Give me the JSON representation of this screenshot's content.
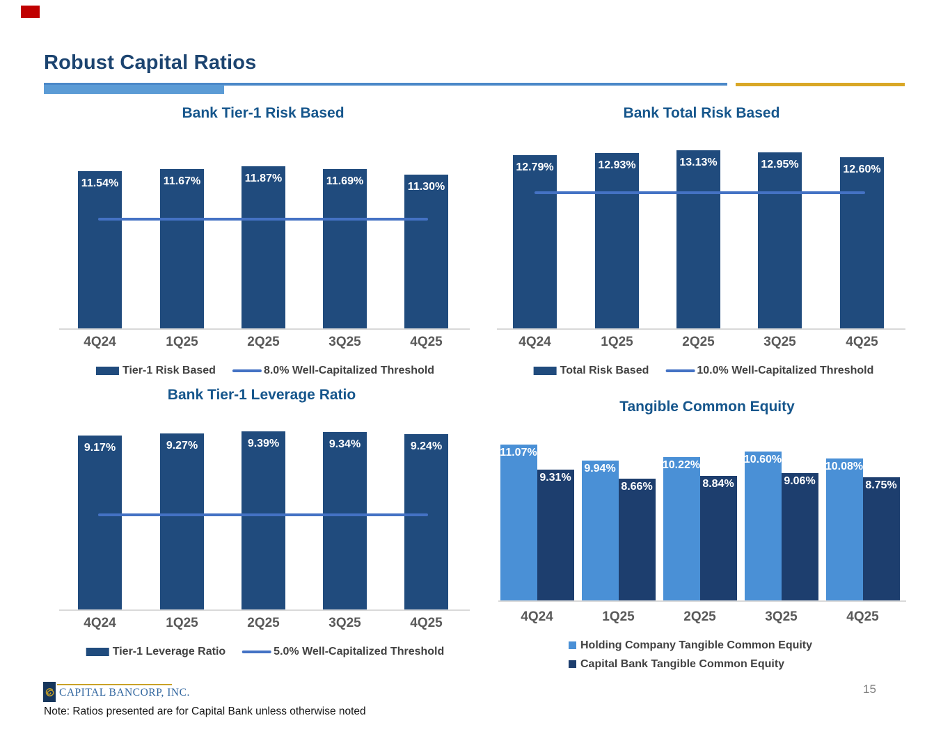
{
  "slide": {
    "title": "Robust Capital Ratios",
    "footnote": "Note: Ratios presented are for Capital Bank unless otherwise noted",
    "page_number": "15",
    "company_name": "CAPITAL BANCORP, INC.",
    "colors": {
      "bar_navy": "#204B7D",
      "bar_light_blue": "#4A90D6",
      "bar_dark_navy": "#1D3E6E",
      "threshold_line_blue": "#4472C4",
      "underline_blue": "#4B88C8",
      "underline_light_blue": "#5B9BD5",
      "underline_gold": "#D9A726",
      "accent_red": "#C00000",
      "main_title_navy": "#1C4470",
      "chart_title_blue": "#16568C",
      "axis_label_gray": "#595959",
      "logo_gold": "#C9A227",
      "logo_navy": "#16365C"
    }
  },
  "chart_data": [
    {
      "id": "bank-tier1-risk-based",
      "type": "bar",
      "title": "Bank Tier-1 Risk Based",
      "categories": [
        "4Q24",
        "1Q25",
        "2Q25",
        "3Q25",
        "4Q25"
      ],
      "series": [
        {
          "name": "Tier-1 Risk Based",
          "values": [
            11.54,
            11.67,
            11.87,
            11.69,
            11.3
          ]
        }
      ],
      "value_labels": [
        "11.54%",
        "11.67%",
        "11.87%",
        "11.69%",
        "11.30%"
      ],
      "threshold": {
        "value": 8.0,
        "label": "8.0% Well-Capitalized Threshold"
      },
      "legend": [
        "Tier-1 Risk Based",
        "8.0% Well-Capitalized Threshold"
      ],
      "legend_position": "bottom",
      "ylim": [
        0,
        12.3
      ],
      "grid": false
    },
    {
      "id": "bank-total-risk-based",
      "type": "bar",
      "title": "Bank Total Risk Based",
      "categories": [
        "4Q24",
        "1Q25",
        "2Q25",
        "3Q25",
        "4Q25"
      ],
      "series": [
        {
          "name": "Total Risk Based",
          "values": [
            12.79,
            12.93,
            13.13,
            12.95,
            12.6
          ]
        }
      ],
      "value_labels": [
        "12.79%",
        "12.93%",
        "13.13%",
        "12.95%",
        "12.60%"
      ],
      "threshold": {
        "value": 10.0,
        "label": "10.0% Well-Capitalized Threshold"
      },
      "legend": [
        "Total Risk Based",
        "10.0% Well-Capitalized Threshold"
      ],
      "legend_position": "bottom",
      "ylim": [
        0,
        13.6
      ],
      "grid": false
    },
    {
      "id": "bank-tier1-leverage-ratio",
      "type": "bar",
      "title": "Bank Tier-1 Leverage Ratio",
      "categories": [
        "4Q24",
        "1Q25",
        "2Q25",
        "3Q25",
        "4Q25"
      ],
      "series": [
        {
          "name": "Tier-1 Leverage Ratio",
          "values": [
            9.17,
            9.27,
            9.39,
            9.34,
            9.24
          ]
        }
      ],
      "value_labels": [
        "9.17%",
        "9.27%",
        "9.39%",
        "9.34%",
        "9.24%"
      ],
      "threshold": {
        "value": 5.0,
        "label": "5.0% Well-Capitalized Threshold"
      },
      "legend": [
        "Tier-1 Leverage Ratio",
        "5.0% Well-Capitalized Threshold"
      ],
      "legend_position": "bottom",
      "ylim": [
        0,
        9.8
      ],
      "grid": false
    },
    {
      "id": "tangible-common-equity",
      "type": "bar",
      "title": "Tangible Common Equity",
      "categories": [
        "4Q24",
        "1Q25",
        "2Q25",
        "3Q25",
        "4Q25"
      ],
      "series": [
        {
          "name": "Holding Company Tangible Common Equity",
          "values": [
            11.07,
            9.94,
            10.22,
            10.6,
            10.08
          ]
        },
        {
          "name": "Capital Bank Tangible Common Equity",
          "values": [
            9.31,
            8.66,
            8.84,
            9.06,
            8.75
          ]
        }
      ],
      "value_labels": [
        [
          "11.07%",
          "9.94%",
          "10.22%",
          "10.60%",
          "10.08%"
        ],
        [
          "9.31%",
          "8.66%",
          "8.84%",
          "9.06%",
          "8.75%"
        ]
      ],
      "legend": [
        "Holding Company Tangible Common Equity",
        "Capital Bank Tangible Common Equity"
      ],
      "legend_position": "bottom",
      "ylim": [
        0,
        13.0
      ],
      "grid": false
    }
  ]
}
